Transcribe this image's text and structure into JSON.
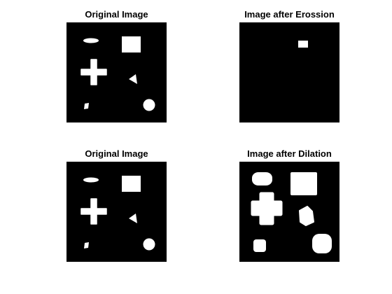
{
  "figure": {
    "background": "#ffffff",
    "image_background": "#000000",
    "shape_color": "#ffffff",
    "panels": [
      {
        "title": "Original Image",
        "view": "original"
      },
      {
        "title": "Image after Erossion",
        "view": "erosion"
      },
      {
        "title": "Original Image",
        "view": "original"
      },
      {
        "title": "Image after Dilation",
        "view": "dilation"
      }
    ]
  }
}
